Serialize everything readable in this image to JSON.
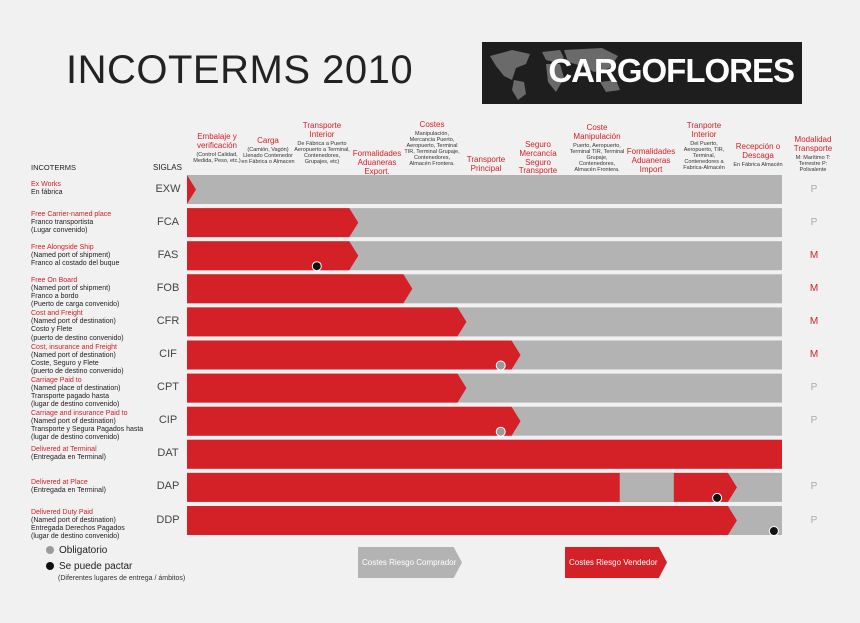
{
  "title": "INCOTERMS 2010",
  "brand": "CARGOFLORES",
  "colors": {
    "seller": "#d42027",
    "buyer": "#b3b3b3",
    "dot_gray": "#9a9a9a",
    "dot_black": "#111111"
  },
  "labels": {
    "incoterms": "INCOTERMS",
    "siglas": "SIGLAS"
  },
  "columns": [
    {
      "h": "Embalaje y verificación",
      "s": "(Control Calidad, Medida, Peso, etc.)"
    },
    {
      "h": "Carga",
      "s": "(Camión, Vagón) Llenado Contenedor en Fábrica o Almacen"
    },
    {
      "h": "Transporte Interior",
      "s": "De Fábrica a Puerto Aeropuerto a Terminal, Contenedores, Grupajes, etc)"
    },
    {
      "h": "Formalidades Aduaneras Export.",
      "s": ""
    },
    {
      "h": "Costes",
      "s": "Manipulación, Mercancia Puerto, Aeropuerto, Terminal TIR, Terminal Grupaje, Contenedores, Almacén Frontera."
    },
    {
      "h": "Transporte Principal",
      "s": ""
    },
    {
      "h": "Seguro Mercancía Seguro Transporte",
      "s": ""
    },
    {
      "h": "Coste Manipulación",
      "s": "Puerto, Aeropuerto, Terminal TIR, Terminal Grupaje, Contenedores, Almacén Frontera."
    },
    {
      "h": "Formalidades Aduaneras Import",
      "s": ""
    },
    {
      "h": "Tranporte Interior",
      "s": "Del Puerto, Aeropuerto, TIR, Terminal, Contenedores a Fabrica-Almacén"
    },
    {
      "h": "Recepción o Descaga",
      "s": "En Fábrica Almacén"
    },
    {
      "h": "Modalidad Transporte",
      "s": "M: Marítimo T: Terrestre P: Polivalente"
    }
  ],
  "rows": [
    {
      "name": "Ex Works",
      "sub": [
        "En fábrica"
      ],
      "code": "EXW",
      "mode": "P",
      "red_to": 0.0,
      "dot": null,
      "gaps": []
    },
    {
      "name": "Free Carrier-named place",
      "sub": [
        "Franco transportista",
        "(Lugar convenido)"
      ],
      "code": "FCA",
      "mode": "P",
      "red_to": 3.0,
      "dot": null,
      "gaps": []
    },
    {
      "name": "Free Alongside Ship",
      "sub": [
        "(Named port of shipment)",
        "Franco al costado del buque"
      ],
      "code": "FAS",
      "mode": "M",
      "red_to": 3.0,
      "dot": {
        "type": "black",
        "at": 2.4
      },
      "gaps": []
    },
    {
      "name": "Free On Board",
      "sub": [
        "(Named port of shipment)",
        "Franco a bordo",
        "(Puerto de carga convenido)"
      ],
      "code": "FOB",
      "mode": "M",
      "red_to": 4.0,
      "dot": null,
      "gaps": []
    },
    {
      "name": "Cost and Freight",
      "sub": [
        "(Named port of destination)",
        "Costo y Flete",
        "(puerto de destino convenido)"
      ],
      "code": "CFR",
      "mode": "M",
      "red_to": 5.0,
      "dot": null,
      "gaps": []
    },
    {
      "name": "Cost, insurance and Freight",
      "sub": [
        "(Named port of destination)",
        "Coste, Seguro y Flete",
        "(puerto de destino convenido)"
      ],
      "code": "CIF",
      "mode": "M",
      "red_to": 6.0,
      "dot": {
        "type": "gray",
        "at": 5.8
      },
      "gaps": []
    },
    {
      "name": "Carriage Paid to",
      "sub": [
        "(Named place of destination)",
        "Transporte pagado hasta",
        "(lugar de destino convenido)"
      ],
      "code": "CPT",
      "mode": "P",
      "red_to": 5.0,
      "dot": null,
      "gaps": []
    },
    {
      "name": "Carriage and insurance Paid to",
      "sub": [
        "(Named port of destination)",
        "Transporte y Segura Pagados hasta",
        "(lugar de destino convenido)"
      ],
      "code": "CIP",
      "mode": "P",
      "red_to": 6.0,
      "dot": {
        "type": "gray",
        "at": 5.8
      },
      "gaps": []
    },
    {
      "name": "Delivered at Terminal",
      "sub": [
        "(Entregada en Terminal)"
      ],
      "code": "DAT",
      "mode": "",
      "red_to": 11.0,
      "dot": null,
      "gaps": []
    },
    {
      "name": "Delivered at Place",
      "sub": [
        "(Entregada en Terminal)"
      ],
      "code": "DAP",
      "mode": "P",
      "red_to": 10.0,
      "dot": {
        "type": "black",
        "at": 9.8
      },
      "gaps": [
        [
          8.0,
          9.0
        ]
      ]
    },
    {
      "name": "Delivered Duty Paid",
      "sub": [
        "(Named port of destination)",
        "Entregada Derechos Pagados",
        "(lugar de destino convenido)"
      ],
      "code": "DDP",
      "mode": "P",
      "red_to": 10.0,
      "dot": {
        "type": "black",
        "at": 10.85
      },
      "gaps": []
    }
  ],
  "legend": {
    "obligatorio": "Obligatorio",
    "pactar": "Se puede pactar",
    "pactar_note": "(Diferentes lugares de entrega / ámbitos)",
    "buyer_costs": "Costes Riesgo Comprador",
    "seller_costs": "Costes Riesgo Vendedor"
  }
}
